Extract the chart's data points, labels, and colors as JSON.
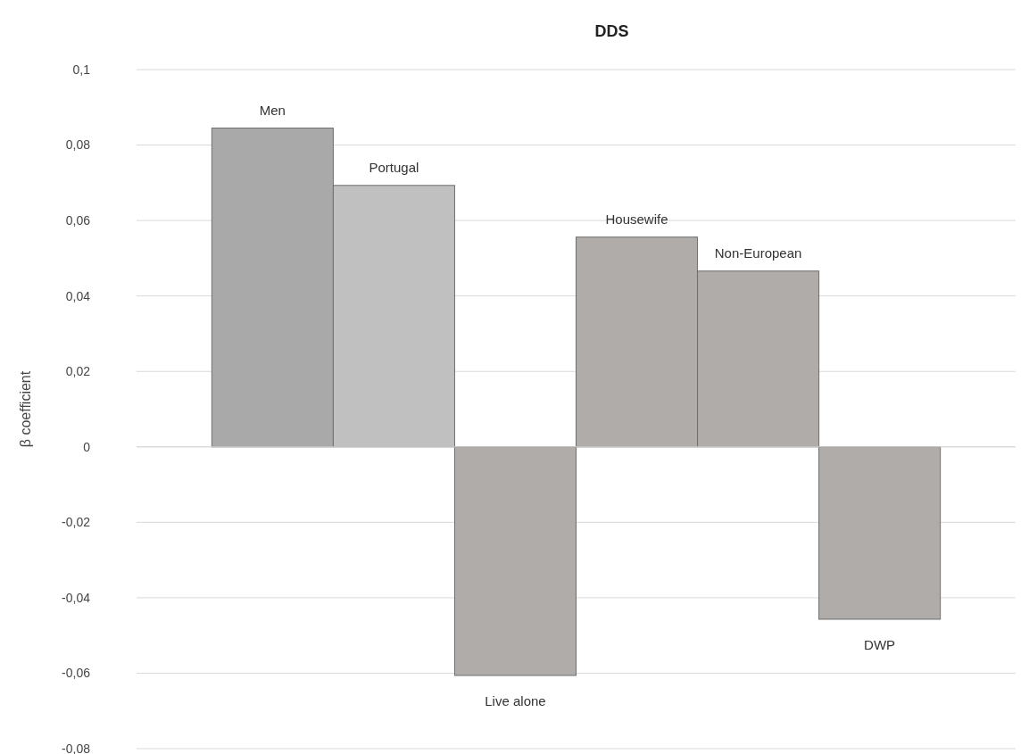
{
  "chart_data": {
    "type": "bar",
    "title": "DDS",
    "ylabel": "β coefficient",
    "categories": [
      "Men",
      "Portugal",
      "Live alone",
      "Housewife",
      "Non-European",
      "DWP"
    ],
    "values": [
      0.0845,
      0.0693,
      -0.0606,
      0.0556,
      0.0466,
      -0.0457
    ],
    "colors": [
      "#a9a9a9",
      "#c0c0c0",
      "#b0aca9",
      "#b0aca9",
      "#b0aca9",
      "#b0aca9"
    ],
    "ylim": [
      -0.08,
      0.1
    ],
    "yticks": [
      {
        "value": -0.08,
        "label": "-0,08"
      },
      {
        "value": -0.06,
        "label": "-0,06"
      },
      {
        "value": -0.04,
        "label": "-0,04"
      },
      {
        "value": -0.02,
        "label": "-0,02"
      },
      0,
      {
        "value": 0.02,
        "label": "0,02"
      },
      {
        "value": 0.04,
        "label": "0,04"
      },
      {
        "value": 0.06,
        "label": "0,06"
      },
      {
        "value": 0.08,
        "label": "0,08"
      },
      {
        "value": 0.1,
        "label": "0,1"
      }
    ],
    "grid": "y"
  }
}
